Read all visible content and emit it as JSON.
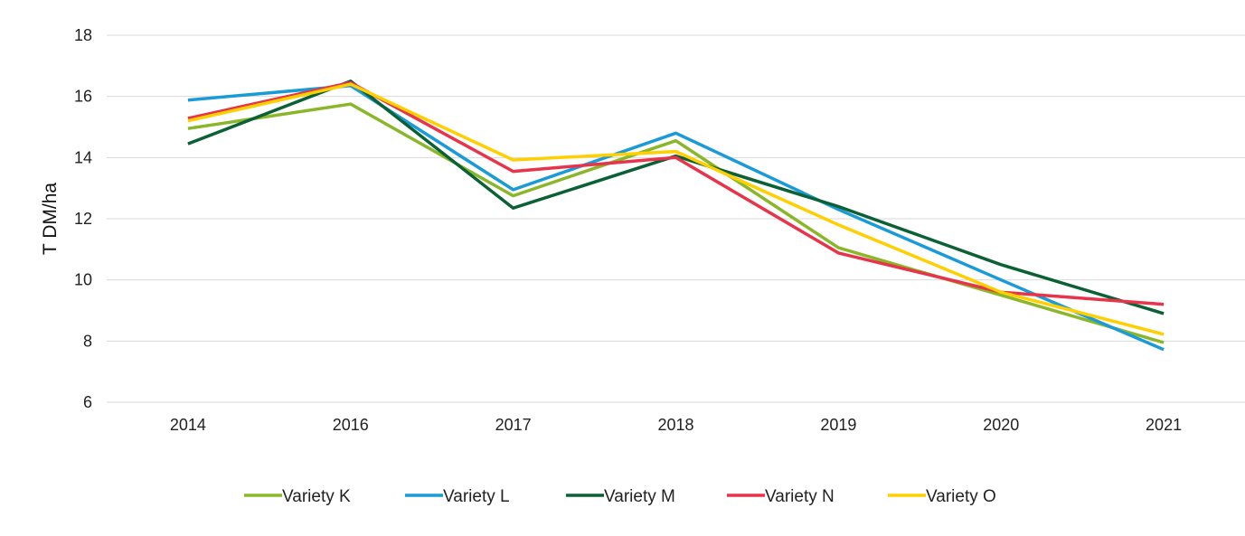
{
  "chart_data": {
    "type": "line",
    "title": "",
    "xlabel": "",
    "ylabel": "T DM/ha",
    "categories": [
      "2014",
      "2016",
      "2017",
      "2018",
      "2019",
      "2020",
      "2021"
    ],
    "ylim": [
      6,
      18
    ],
    "yticks": [
      6,
      8,
      10,
      12,
      14,
      16,
      18
    ],
    "grid": true,
    "legend_position": "bottom",
    "series": [
      {
        "name": "Variety K",
        "color": "#8ab729",
        "values": [
          14.95,
          15.75,
          12.75,
          14.55,
          11.05,
          9.5,
          7.95
        ]
      },
      {
        "name": "Variety L",
        "color": "#1a9bd7",
        "values": [
          15.88,
          16.35,
          12.95,
          14.8,
          12.3,
          10.0,
          7.72
        ]
      },
      {
        "name": "Variety M",
        "color": "#0b6135",
        "values": [
          14.45,
          16.5,
          12.35,
          14.05,
          12.4,
          10.5,
          8.9
        ]
      },
      {
        "name": "Variety N",
        "color": "#e8344a",
        "values": [
          15.28,
          16.45,
          13.55,
          14.0,
          10.88,
          9.6,
          9.2
        ]
      },
      {
        "name": "Variety O",
        "color": "#ffcf00",
        "values": [
          15.2,
          16.4,
          13.92,
          14.2,
          11.8,
          9.6,
          8.22
        ]
      }
    ]
  }
}
